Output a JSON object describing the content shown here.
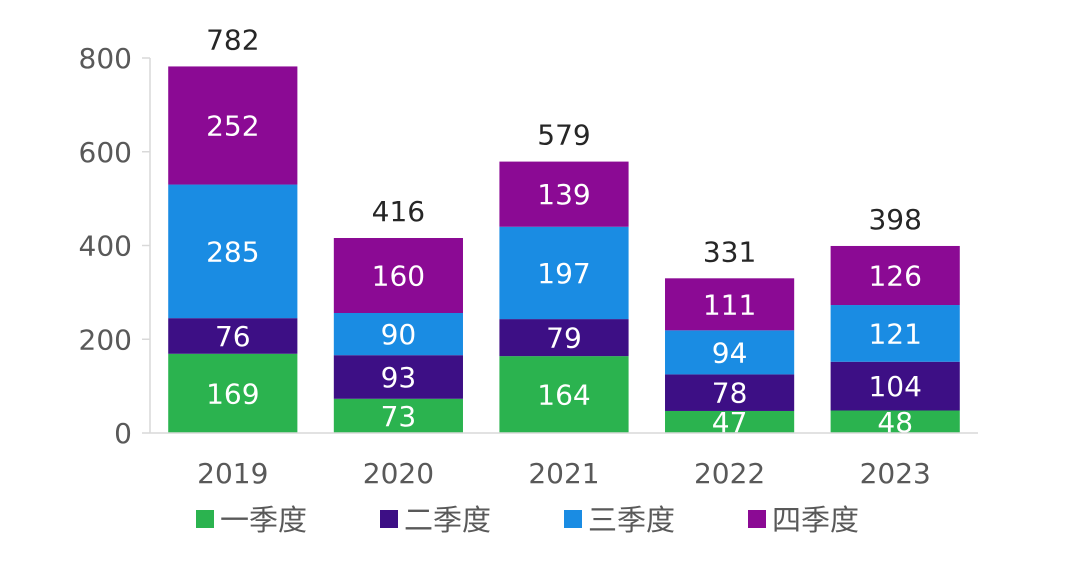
{
  "chart_data": {
    "type": "bar",
    "stacked": true,
    "title": "",
    "xlabel": "",
    "ylabel": "",
    "categories": [
      "2019",
      "2020",
      "2021",
      "2022",
      "2023"
    ],
    "series": [
      {
        "name": "一季度",
        "color": "#2bb34f",
        "values": [
          169,
          73,
          164,
          47,
          48
        ]
      },
      {
        "name": "二季度",
        "color": "#3d0f85",
        "values": [
          76,
          93,
          79,
          78,
          104
        ]
      },
      {
        "name": "三季度",
        "color": "#1a8ce3",
        "values": [
          285,
          90,
          197,
          94,
          121
        ]
      },
      {
        "name": "四季度",
        "color": "#8b0a94",
        "values": [
          252,
          160,
          139,
          111,
          126
        ]
      }
    ],
    "totals": [
      782,
      416,
      579,
      331,
      398
    ],
    "ylim": [
      0,
      800
    ],
    "yticks": [
      0,
      200,
      400,
      600,
      800
    ],
    "grid": false,
    "legend_position": "bottom"
  }
}
